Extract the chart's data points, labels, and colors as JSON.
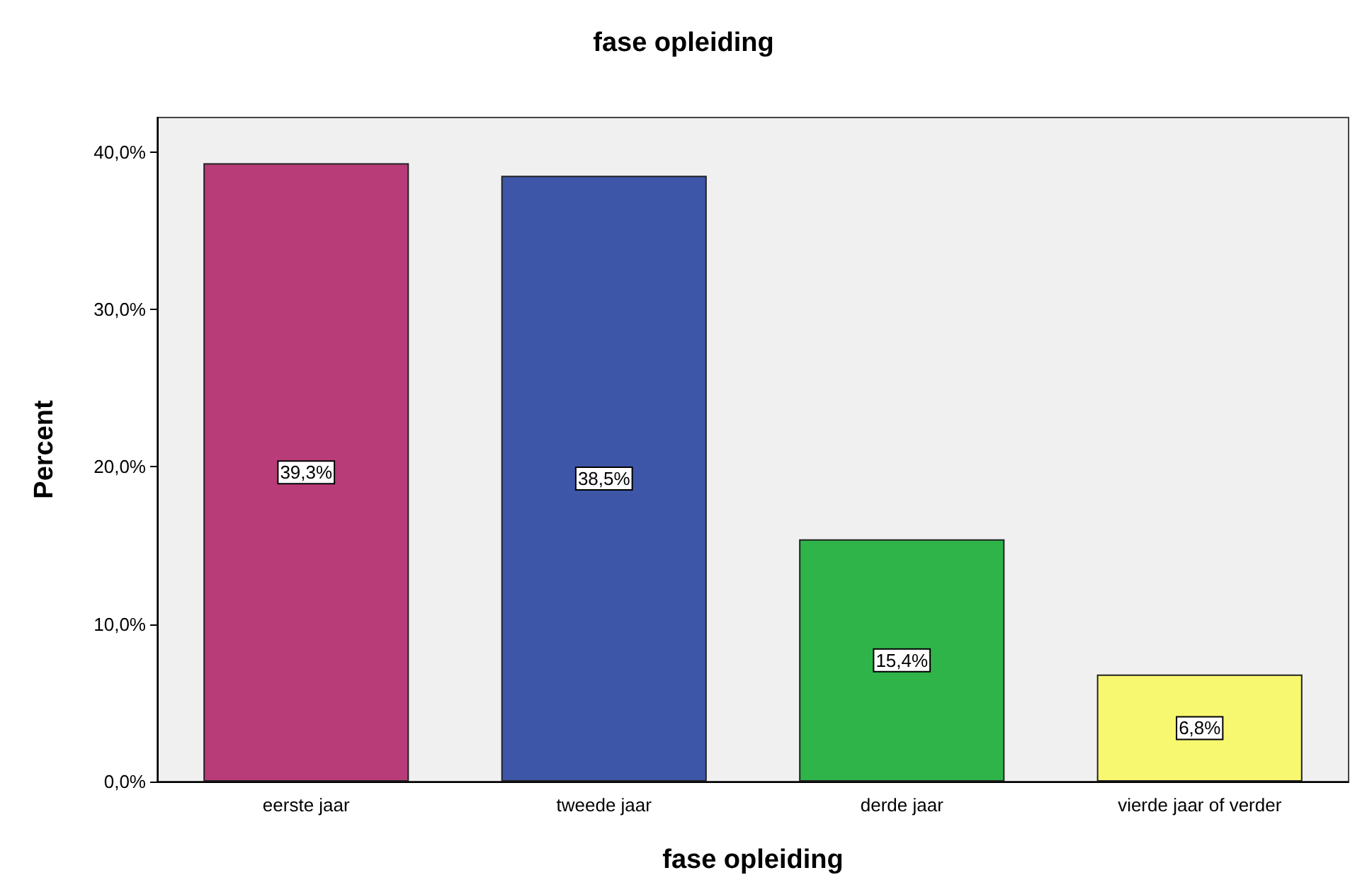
{
  "chart_data": {
    "type": "bar",
    "title": "fase opleiding",
    "xlabel": "fase opleiding",
    "ylabel": "Percent",
    "categories": [
      "eerste jaar",
      "tweede jaar",
      "derde jaar",
      "vierde jaar of verder"
    ],
    "values": [
      39.3,
      38.5,
      15.4,
      6.8
    ],
    "colors": [
      "#b83c78",
      "#3d56a8",
      "#2fb44a",
      "#f8f870"
    ],
    "value_labels": [
      "39,3%",
      "38,5%",
      "15,4%",
      "6,8%"
    ],
    "ylim": [
      0,
      42.2
    ],
    "yticks": [
      {
        "value": 0,
        "label": "0,0%"
      },
      {
        "value": 10,
        "label": "10,0%"
      },
      {
        "value": 20,
        "label": "20,0%"
      },
      {
        "value": 30,
        "label": "30,0%"
      },
      {
        "value": 40,
        "label": "40,0%"
      }
    ]
  }
}
